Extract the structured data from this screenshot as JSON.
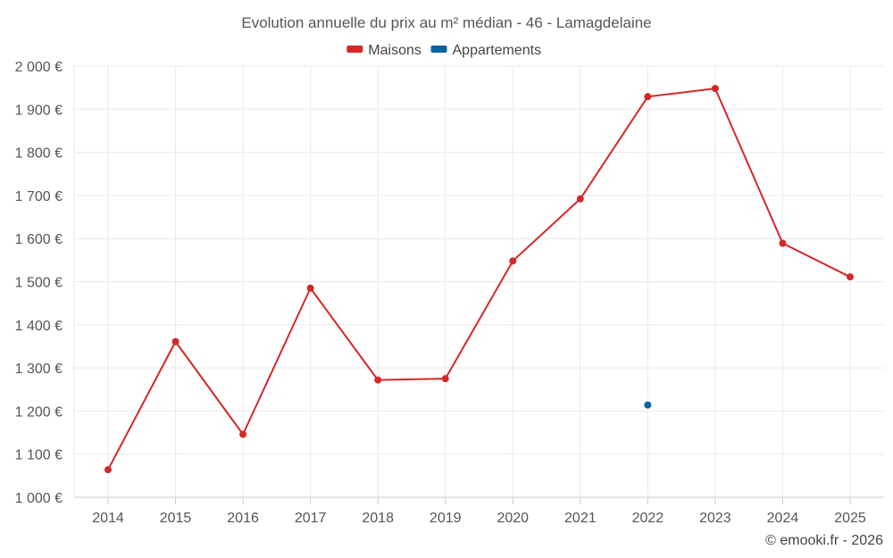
{
  "chart_data": {
    "type": "line",
    "title": "Evolution annuelle du prix au m² médian - 46 - Lamagdelaine",
    "categories": [
      "2014",
      "2015",
      "2016",
      "2017",
      "2018",
      "2019",
      "2020",
      "2021",
      "2022",
      "2023",
      "2024",
      "2025"
    ],
    "series": [
      {
        "name": "Maisons",
        "color": "#d62728",
        "values": [
          1064,
          1361,
          1146,
          1485,
          1272,
          1275,
          1548,
          1692,
          1929,
          1948,
          1589,
          1511
        ]
      },
      {
        "name": "Appartements",
        "color": "#0b62a4",
        "values": [
          null,
          null,
          null,
          null,
          null,
          null,
          null,
          null,
          1214,
          null,
          null,
          null
        ]
      }
    ],
    "ylim": [
      1000,
      2000
    ],
    "yticks": [
      1000,
      1100,
      1200,
      1300,
      1400,
      1500,
      1600,
      1700,
      1800,
      1900,
      2000
    ],
    "ytick_labels": [
      "1 000 €",
      "1 100 €",
      "1 200 €",
      "1 300 €",
      "1 400 €",
      "1 500 €",
      "1 600 €",
      "1 700 €",
      "1 800 €",
      "1 900 €",
      "2 000 €"
    ],
    "grid": true,
    "legend_position": "top-center",
    "xlabel": "",
    "ylabel": ""
  },
  "credit": "© emooki.fr - 2026"
}
